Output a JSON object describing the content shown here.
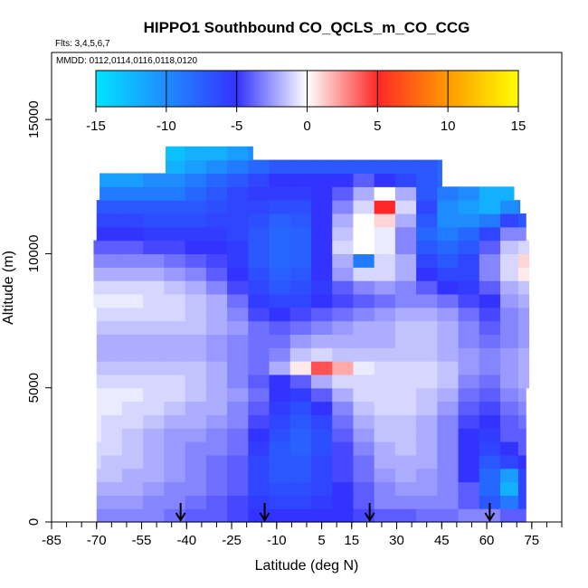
{
  "chart_data": {
    "type": "heatmap",
    "title": "HIPPO1 Southbound CO_QCLS_m_CO_CCG",
    "subtitle": "Flts: 3,4,5,6,7",
    "annotation": "MMDD: 0112,0114,0116,0118,0120",
    "xlabel": "Latitude (deg N)",
    "ylabel": "Altitude (m)",
    "xlim": [
      -85,
      85
    ],
    "ylim": [
      0,
      17500
    ],
    "x_ticks": [
      "-85",
      "-70",
      "-55",
      "-40",
      "-25",
      "-10",
      "5",
      "15",
      "30",
      "45",
      "60",
      "75"
    ],
    "x_tick_values": [
      -85,
      -70,
      -55,
      -40,
      -25,
      -10,
      5,
      15,
      30,
      45,
      60,
      75
    ],
    "x_minor_tick_step": 5,
    "y_ticks": [
      "0",
      "5000",
      "10000",
      "15000"
    ],
    "y_tick_values": [
      0,
      5000,
      10000,
      15000
    ],
    "colorbar": {
      "min": -15,
      "max": 15,
      "ticks": [
        "-15",
        "-10",
        "-5",
        "0",
        "5",
        "10",
        "15"
      ],
      "tick_values": [
        -15,
        -10,
        -5,
        0,
        5,
        10,
        15
      ],
      "colors": [
        "#00e5ff",
        "#1e8cff",
        "#3333ff",
        "#ffffff",
        "#ff2828",
        "#ff9a00",
        "#ffff00"
      ]
    },
    "flight_arrows_lat": [
      -42,
      -14,
      21,
      61
    ],
    "field": {
      "lat_centers": [
        -72,
        -65,
        -58,
        -51,
        -44,
        -37,
        -30,
        -23,
        -16,
        -9,
        -2,
        5,
        12,
        19,
        26,
        33,
        40,
        47,
        54,
        61,
        68,
        73
      ],
      "alt_levels": [
        250,
        750,
        1250,
        1750,
        2250,
        2750,
        3250,
        3750,
        4250,
        4750,
        5250,
        5750,
        6250,
        6750,
        7250,
        7750,
        8250,
        8750,
        9250,
        9750,
        10250,
        10750,
        11250,
        11750,
        12250,
        12750,
        13250,
        13750
      ],
      "values": [
        [
          -3,
          -3,
          -3,
          -3,
          -3.5,
          -4,
          -4,
          -4.5,
          -5,
          -5,
          -5,
          -5,
          -5,
          -4.5,
          -4,
          -4,
          -3.5,
          -3.5,
          -3,
          -3,
          -4,
          -4
        ],
        [
          -2.5,
          -2.5,
          -2.5,
          -3,
          -3,
          -3.5,
          -4,
          -4.5,
          -5.5,
          -6,
          -6,
          -5.5,
          -5,
          -4,
          -3,
          -3,
          -3,
          -3,
          -4,
          -7,
          -9,
          -6
        ],
        [
          -2,
          -2,
          -2,
          -2.5,
          -3,
          -3,
          -3.5,
          -4,
          -6,
          -6.5,
          -6.5,
          -6,
          -5,
          -4,
          -3,
          -2.5,
          -2.5,
          -3,
          -4,
          -8,
          -12,
          -6
        ],
        [
          -1.5,
          -1.5,
          -2,
          -2,
          -2.5,
          -3,
          -3.5,
          -4,
          -6,
          -7,
          -7,
          -6,
          -4.5,
          -3.5,
          -2.5,
          -2,
          -2.5,
          -3,
          -5,
          -8,
          -11,
          -6
        ],
        [
          -1,
          -1.5,
          -1.5,
          -2,
          -2.5,
          -3,
          -3.5,
          -4,
          -6,
          -7,
          -7,
          -6,
          -4.5,
          -3.5,
          -2,
          -2,
          -2,
          -3,
          -5,
          -7,
          -6,
          -5
        ],
        [
          -1,
          -1,
          -1.5,
          -2,
          -2.5,
          -3,
          -3,
          -3.5,
          -5.5,
          -7,
          -7.5,
          -6.5,
          -4.5,
          -3,
          -2,
          -1.5,
          -2,
          -3,
          -5,
          -6,
          -5,
          -4
        ],
        [
          -0.5,
          -1,
          -1.5,
          -2,
          -2.5,
          -2.5,
          -3,
          -3.5,
          -5,
          -6.5,
          -7.5,
          -6.5,
          -4,
          -2.5,
          -1.5,
          -1.5,
          -2,
          -3,
          -5,
          -5.5,
          -4,
          -4
        ],
        [
          -0.5,
          -1,
          -1,
          -1.5,
          -2,
          -2,
          -2.5,
          -3,
          -4.5,
          -6,
          -7,
          -6,
          -3.5,
          -2,
          -1.5,
          -1.5,
          -2,
          -3,
          -4.5,
          -5,
          -4,
          -3.5
        ],
        [
          -0.5,
          -0.5,
          -1,
          -1,
          -1.5,
          -2,
          -2,
          -3,
          -4,
          -5.5,
          -6.5,
          -5,
          -3,
          -1.5,
          -1,
          -1,
          -1.5,
          -2.5,
          -4,
          -4.5,
          -3.5,
          -3
        ],
        [
          -0.5,
          -0.5,
          -0.5,
          -1,
          -1,
          -1.5,
          -2,
          -2.5,
          -3.5,
          -5,
          -5.5,
          -4,
          -2,
          -1,
          -1,
          -1,
          -1.5,
          -2,
          -3.5,
          -4,
          -3,
          -2.5
        ],
        [
          -1,
          -1,
          -1,
          -1,
          -1,
          -1.5,
          -2,
          -3,
          -4,
          -5,
          -4,
          -2,
          -1,
          -1,
          -1,
          -1,
          -1,
          -1.5,
          -3,
          -3.5,
          -2.5,
          -2
        ],
        [
          -1.5,
          -1.5,
          -1.5,
          -1.5,
          -1.5,
          -1.5,
          -2,
          -3,
          -3.5,
          -2,
          0.5,
          4,
          2,
          -0.5,
          -1,
          -1,
          -1,
          -1.5,
          -2.5,
          -3,
          -2.5,
          -2
        ],
        [
          -2,
          -2,
          -2,
          -2,
          -2,
          -2,
          -2.5,
          -3,
          -3.5,
          -3,
          -1.5,
          -1,
          -1.5,
          -1.5,
          -1.5,
          -1.5,
          -1.5,
          -2,
          -2.5,
          -3,
          -2.5,
          -2
        ],
        [
          -2,
          -2,
          -2,
          -2,
          -2,
          -2,
          -2.5,
          -3,
          -3.5,
          -3.5,
          -2.5,
          -2,
          -2,
          -2,
          -2,
          -1.5,
          -1.5,
          -2,
          -3,
          -3.5,
          -3,
          -2.5
        ],
        [
          -1.5,
          -1.5,
          -1.5,
          -1.5,
          -1.5,
          -1.5,
          -2,
          -2.5,
          -3.5,
          -4,
          -3.5,
          -3,
          -2.5,
          -2,
          -2,
          -1.5,
          -1.5,
          -2,
          -3,
          -4,
          -3,
          -2.5
        ],
        [
          -1,
          -1,
          -1,
          -1,
          -1,
          -1.5,
          -2,
          -3,
          -4.5,
          -5,
          -4.5,
          -4,
          -3.5,
          -3,
          -2.5,
          -2,
          -2,
          -2.5,
          -3.5,
          -4.5,
          -3,
          -2.5
        ],
        [
          -0.5,
          -0.5,
          -0.5,
          -1,
          -1,
          -1.5,
          -2,
          -3.5,
          -5.5,
          -6,
          -6,
          -5,
          -4.5,
          -4,
          -3.5,
          -3,
          -3,
          -3.5,
          -4.5,
          -5,
          -2.5,
          -2
        ],
        [
          -1,
          -1,
          -1,
          -1,
          -1.5,
          -2,
          -3,
          -4.5,
          -6,
          -7,
          -6.5,
          -5.5,
          -4,
          -3,
          -2.5,
          -3,
          -4,
          -5,
          -5.5,
          -4,
          -2,
          -1.5
        ],
        [
          -2,
          -2,
          -2,
          -2,
          -2.5,
          -3,
          -4,
          -5,
          -6.5,
          -7.5,
          -7,
          -5,
          -2.5,
          -1,
          -1,
          -2,
          -5,
          -6,
          -6,
          -3,
          -1,
          0.5
        ],
        [
          -3,
          -3,
          -3,
          -3,
          -3.5,
          -4,
          -4.5,
          -5.5,
          -7,
          -8,
          -7.5,
          -5,
          -2,
          -9,
          -1,
          -2,
          -6,
          -7,
          -6,
          -3,
          -1,
          1
        ],
        [
          -4,
          -4,
          -4,
          -4.5,
          -4.5,
          -5,
          -5,
          -5.5,
          -7,
          -8,
          -7.5,
          -5,
          -1,
          0,
          -0.5,
          -3,
          -7,
          -8,
          -7,
          -4,
          -1.5,
          -1
        ],
        [
          -5,
          -5,
          -5,
          -5.5,
          -5.5,
          -5.5,
          -5.5,
          -6,
          -7,
          -8,
          -7.5,
          -5,
          -1.5,
          0,
          -0.5,
          -3,
          -8,
          -9,
          -8,
          -6,
          -3,
          -3
        ],
        [
          -6,
          -6,
          -6,
          -6.5,
          -6.5,
          -6.5,
          -6,
          -6,
          -6.5,
          -7.5,
          -7,
          -5,
          -2,
          0,
          1,
          -2,
          -7,
          -10,
          -10,
          -9,
          -6,
          -7
        ],
        [
          -7,
          -7,
          -7,
          -7,
          -7,
          -7,
          -6.5,
          -6,
          -6,
          -6.5,
          -6.5,
          -5,
          -3,
          -1,
          5,
          -1,
          -6,
          -10,
          -11,
          -12,
          -10,
          -9
        ],
        [
          -9,
          -9,
          -9,
          -9,
          -9,
          -8,
          -7,
          -6,
          -5.5,
          -5.5,
          -5.5,
          -5,
          -4,
          -2,
          0,
          -2,
          -7,
          -9,
          -10,
          -12,
          -12,
          -9
        ],
        [
          -11,
          -11,
          -11,
          -10,
          -10,
          -9,
          -8,
          -7,
          -6,
          -5,
          -5,
          -5,
          -5,
          -4,
          -5,
          -6,
          -7,
          -8,
          -9,
          -9,
          -10,
          -9
        ],
        [
          -12,
          -12,
          -12,
          -12,
          -12,
          -11,
          -10,
          -9,
          -8,
          -7,
          -7,
          -7,
          -7,
          -7,
          -7,
          -7,
          -7,
          -8,
          -9,
          -9,
          -9,
          -9
        ],
        [
          -13,
          -13,
          -13,
          -13,
          -13,
          -12,
          -12,
          -11,
          -10,
          -10,
          -10,
          -10,
          -10,
          -10,
          -10,
          -10,
          -10,
          -10,
          -10,
          -10,
          -10,
          -10
        ]
      ],
      "coverage_lat_range_by_level": [
        [
          -70,
          73
        ],
        [
          -70,
          73
        ],
        [
          -70,
          73
        ],
        [
          -70,
          73
        ],
        [
          -70,
          73
        ],
        [
          -70,
          73
        ],
        [
          -70,
          73
        ],
        [
          -70,
          73
        ],
        [
          -70,
          73
        ],
        [
          -70,
          73
        ],
        [
          -70,
          74
        ],
        [
          -70,
          74
        ],
        [
          -70,
          74
        ],
        [
          -70,
          74
        ],
        [
          -70,
          74
        ],
        [
          -70,
          74
        ],
        [
          -71,
          74
        ],
        [
          -71,
          74
        ],
        [
          -71,
          74
        ],
        [
          -71,
          74
        ],
        [
          -71,
          74
        ],
        [
          -70,
          73
        ],
        [
          -70,
          73
        ],
        [
          -70,
          71
        ],
        [
          -69,
          69
        ],
        [
          -69,
          45
        ],
        [
          -47,
          45
        ],
        [
          -47,
          -18
        ]
      ]
    }
  }
}
